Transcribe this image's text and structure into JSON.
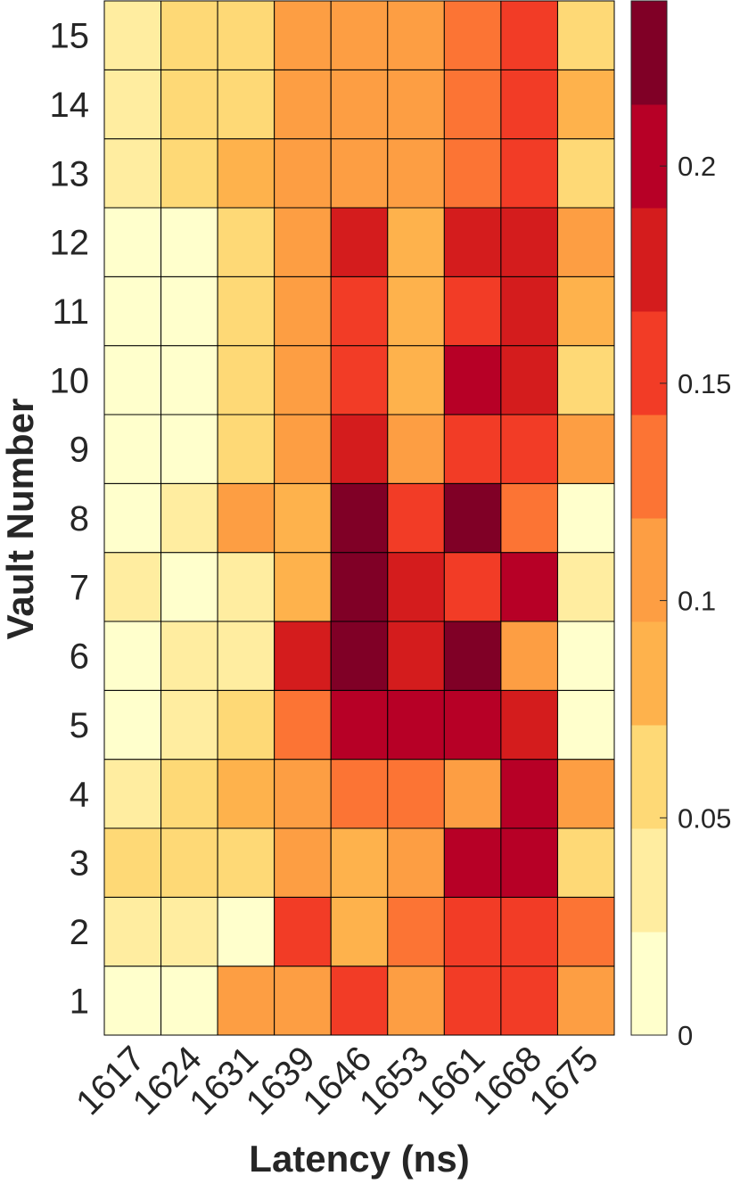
{
  "chart_data": {
    "type": "heatmap",
    "xlabel": "Latency (ns)",
    "ylabel": "Vault Number",
    "x_categories": [
      "1617",
      "1624",
      "1631",
      "1639",
      "1646",
      "1653",
      "1661",
      "1668",
      "1675"
    ],
    "y_categories": [
      "1",
      "2",
      "3",
      "4",
      "5",
      "6",
      "7",
      "8",
      "9",
      "10",
      "11",
      "12",
      "13",
      "14",
      "15"
    ],
    "values_by_vault": {
      "1": [
        0.01,
        0.01,
        0.11,
        0.11,
        0.16,
        0.11,
        0.16,
        0.16,
        0.11
      ],
      "2": [
        0.04,
        0.04,
        0.01,
        0.16,
        0.09,
        0.14,
        0.16,
        0.16,
        0.14
      ],
      "3": [
        0.07,
        0.06,
        0.06,
        0.11,
        0.09,
        0.11,
        0.21,
        0.21,
        0.06
      ],
      "4": [
        0.04,
        0.06,
        0.09,
        0.11,
        0.14,
        0.14,
        0.11,
        0.21,
        0.11
      ],
      "5": [
        0.01,
        0.04,
        0.06,
        0.14,
        0.21,
        0.21,
        0.21,
        0.18,
        0.01
      ],
      "6": [
        0.01,
        0.04,
        0.04,
        0.18,
        0.23,
        0.18,
        0.23,
        0.11,
        0.01
      ],
      "7": [
        0.04,
        0.01,
        0.04,
        0.09,
        0.23,
        0.18,
        0.16,
        0.21,
        0.04
      ],
      "8": [
        0.01,
        0.04,
        0.11,
        0.09,
        0.23,
        0.16,
        0.23,
        0.14,
        0.01
      ],
      "9": [
        0.01,
        0.01,
        0.06,
        0.11,
        0.18,
        0.11,
        0.16,
        0.16,
        0.11
      ],
      "10": [
        0.01,
        0.01,
        0.06,
        0.11,
        0.16,
        0.09,
        0.21,
        0.18,
        0.06
      ],
      "11": [
        0.01,
        0.01,
        0.06,
        0.11,
        0.16,
        0.09,
        0.16,
        0.18,
        0.09
      ],
      "12": [
        0.01,
        0.01,
        0.06,
        0.11,
        0.18,
        0.09,
        0.18,
        0.18,
        0.11
      ],
      "13": [
        0.04,
        0.06,
        0.09,
        0.11,
        0.11,
        0.11,
        0.14,
        0.16,
        0.06
      ],
      "14": [
        0.04,
        0.06,
        0.06,
        0.11,
        0.11,
        0.11,
        0.14,
        0.16,
        0.09
      ],
      "15": [
        0.04,
        0.06,
        0.06,
        0.11,
        0.11,
        0.11,
        0.14,
        0.16,
        0.06
      ]
    },
    "colorbar": {
      "range": [
        0,
        0.238
      ],
      "ticks": [
        0,
        0.05,
        0.1,
        0.15,
        0.2
      ],
      "tick_labels": [
        "0",
        "0.05",
        "0.1",
        "0.15",
        "0.2"
      ],
      "colors": [
        "#ffffcc",
        "#ffeda0",
        "#fed976",
        "#feb24c",
        "#fd9e43",
        "#fc7434",
        "#f23c26",
        "#d41c1d",
        "#b70026",
        "#800026"
      ]
    }
  }
}
